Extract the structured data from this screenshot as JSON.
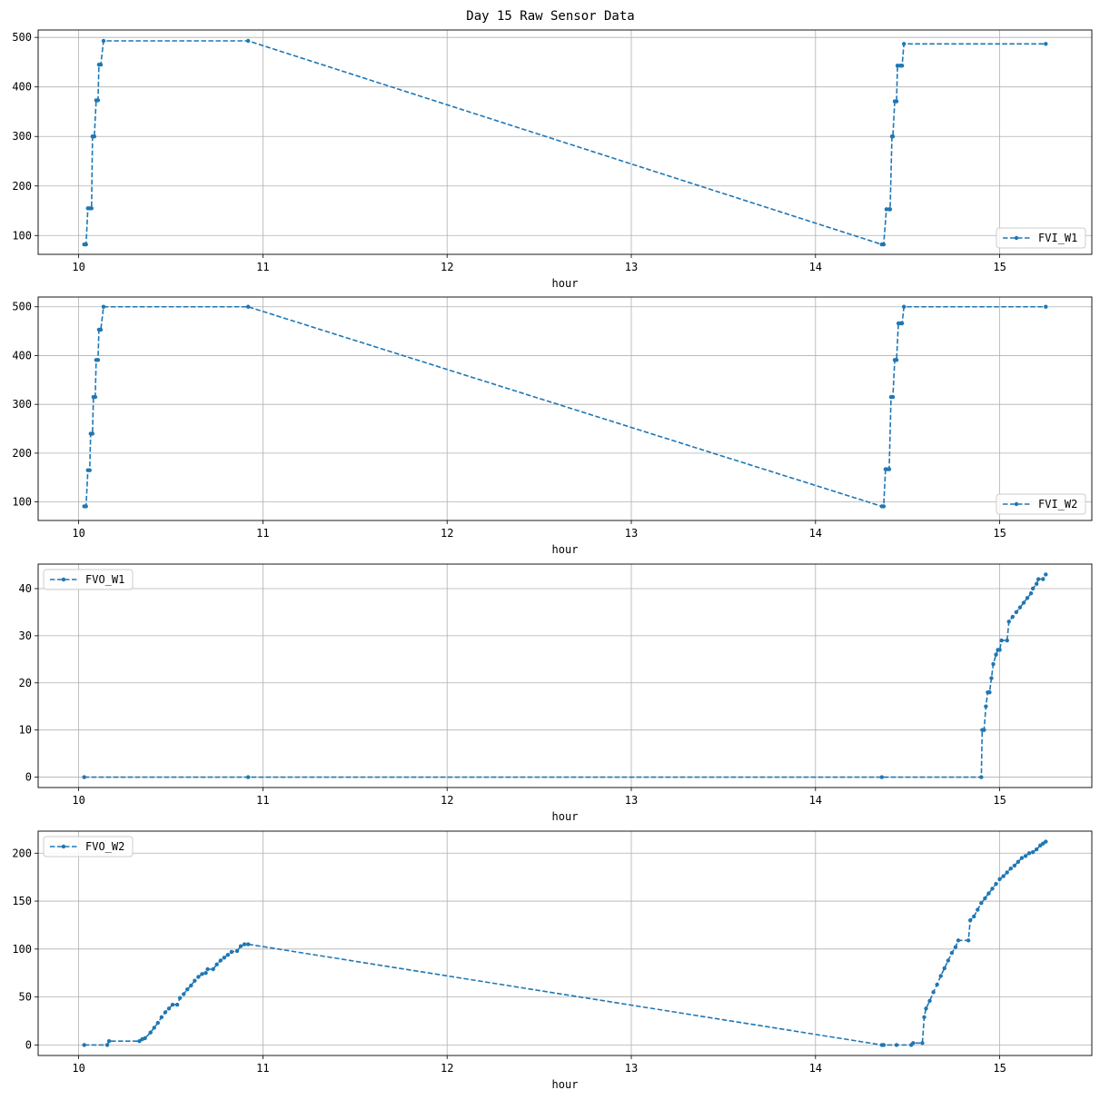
{
  "figure": {
    "title": "Day 15 Raw Sensor Data"
  },
  "style": {
    "line_color": "#1f77b4",
    "grid_color": "#b0b0b0"
  },
  "chart_data": [
    {
      "type": "line",
      "series": [
        {
          "name": "FVI_W1",
          "x": [
            10.04,
            10.07,
            10.085,
            10.1,
            10.12,
            10.13,
            10.92,
            14.37,
            14.4,
            14.42,
            14.44,
            14.47,
            14.48,
            15.25
          ],
          "y": [
            82,
            155,
            300,
            373,
            445,
            493,
            493,
            82,
            153,
            300,
            371,
            443,
            487,
            487
          ]
        }
      ],
      "xlabel": "hour",
      "ylabel": "",
      "xlim": [
        9.78,
        15.5
      ],
      "ylim": [
        62,
        515
      ],
      "xticks": [
        10,
        11,
        12,
        13,
        14,
        15
      ],
      "yticks": [
        100,
        200,
        300,
        400,
        500
      ],
      "grid": true,
      "legend": "lower right",
      "points": [
        [
          10.03,
          82
        ],
        [
          10.04,
          82
        ],
        [
          10.05,
          155
        ],
        [
          10.06,
          155
        ],
        [
          10.07,
          155
        ],
        [
          10.075,
          300
        ],
        [
          10.085,
          300
        ],
        [
          10.095,
          373
        ],
        [
          10.105,
          373
        ],
        [
          10.11,
          445
        ],
        [
          10.12,
          445
        ],
        [
          10.135,
          493
        ],
        [
          10.92,
          493
        ],
        [
          14.36,
          82
        ],
        [
          14.37,
          82
        ],
        [
          14.385,
          153
        ],
        [
          14.4,
          153
        ],
        [
          14.405,
          153
        ],
        [
          14.415,
          300
        ],
        [
          14.42,
          300
        ],
        [
          14.43,
          371
        ],
        [
          14.44,
          371
        ],
        [
          14.445,
          443
        ],
        [
          14.46,
          443
        ],
        [
          14.47,
          443
        ],
        [
          14.48,
          487
        ],
        [
          15.25,
          487
        ]
      ]
    },
    {
      "type": "line",
      "series": [
        {
          "name": "FVI_W2",
          "x": [
            10.04,
            10.06,
            10.07,
            10.085,
            10.1,
            10.12,
            10.14,
            10.92,
            14.37,
            14.4,
            14.42,
            14.44,
            14.47,
            14.48,
            15.25
          ],
          "y": [
            91,
            165,
            240,
            315,
            391,
            453,
            500,
            500,
            91,
            167,
            315,
            391,
            466,
            500,
            500
          ]
        }
      ],
      "xlabel": "hour",
      "ylabel": "",
      "xlim": [
        9.78,
        15.5
      ],
      "ylim": [
        62,
        520
      ],
      "xticks": [
        10,
        11,
        12,
        13,
        14,
        15
      ],
      "yticks": [
        100,
        200,
        300,
        400,
        500
      ],
      "grid": true,
      "legend": "lower right",
      "points": [
        [
          10.03,
          91
        ],
        [
          10.04,
          91
        ],
        [
          10.05,
          165
        ],
        [
          10.06,
          165
        ],
        [
          10.065,
          240
        ],
        [
          10.075,
          240
        ],
        [
          10.08,
          315
        ],
        [
          10.09,
          315
        ],
        [
          10.095,
          391
        ],
        [
          10.105,
          391
        ],
        [
          10.11,
          453
        ],
        [
          10.12,
          453
        ],
        [
          10.135,
          500
        ],
        [
          10.92,
          500
        ],
        [
          14.36,
          91
        ],
        [
          14.37,
          91
        ],
        [
          14.38,
          167
        ],
        [
          14.39,
          167
        ],
        [
          14.4,
          167
        ],
        [
          14.41,
          315
        ],
        [
          14.42,
          315
        ],
        [
          14.43,
          391
        ],
        [
          14.44,
          391
        ],
        [
          14.45,
          466
        ],
        [
          14.46,
          466
        ],
        [
          14.47,
          466
        ],
        [
          14.48,
          500
        ],
        [
          15.25,
          500
        ]
      ]
    },
    {
      "type": "line",
      "series": [
        {
          "name": "FVO_W1",
          "x": [
            10.04,
            10.92,
            14.37,
            14.9,
            14.91,
            14.93,
            14.95,
            15.0,
            15.05,
            15.25
          ],
          "y": [
            0,
            0,
            0,
            0,
            10,
            18,
            24,
            29,
            33,
            43
          ]
        }
      ],
      "xlabel": "hour",
      "ylabel": "",
      "xlim": [
        9.78,
        15.5
      ],
      "ylim": [
        -2.2,
        45.2
      ],
      "xticks": [
        10,
        11,
        12,
        13,
        14,
        15
      ],
      "yticks": [
        0,
        10,
        20,
        30,
        40
      ],
      "grid": true,
      "legend": "upper left",
      "points": [
        [
          10.03,
          0
        ],
        [
          10.92,
          0
        ],
        [
          14.36,
          0
        ],
        [
          14.9,
          0
        ],
        [
          14.905,
          10
        ],
        [
          14.915,
          10
        ],
        [
          14.925,
          15
        ],
        [
          14.935,
          18
        ],
        [
          14.945,
          18
        ],
        [
          14.955,
          21
        ],
        [
          14.965,
          24
        ],
        [
          14.98,
          26
        ],
        [
          14.99,
          27
        ],
        [
          15.0,
          27
        ],
        [
          15.01,
          29
        ],
        [
          15.04,
          29
        ],
        [
          15.05,
          33
        ],
        [
          15.07,
          34
        ],
        [
          15.09,
          35
        ],
        [
          15.11,
          36
        ],
        [
          15.13,
          37
        ],
        [
          15.15,
          38
        ],
        [
          15.17,
          39
        ],
        [
          15.18,
          40
        ],
        [
          15.2,
          41
        ],
        [
          15.21,
          42
        ],
        [
          15.235,
          42
        ],
        [
          15.25,
          43
        ]
      ]
    },
    {
      "type": "line",
      "series": [
        {
          "name": "FVO_W2",
          "x": [
            10.04,
            10.16,
            10.35,
            10.6,
            10.92,
            14.37,
            14.55,
            14.6,
            14.8,
            14.85,
            15.0,
            15.25
          ],
          "y": [
            0,
            4,
            5,
            55,
            105,
            0,
            2,
            30,
            109,
            130,
            175,
            212
          ]
        }
      ],
      "xlabel": "hour",
      "ylabel": "",
      "xlim": [
        9.78,
        15.5
      ],
      "ylim": [
        -11,
        223
      ],
      "xticks": [
        10,
        11,
        12,
        13,
        14,
        15
      ],
      "yticks": [
        0,
        50,
        100,
        150,
        200
      ],
      "grid": true,
      "legend": "upper left",
      "points": [
        [
          10.03,
          0
        ],
        [
          10.155,
          0
        ],
        [
          10.165,
          4
        ],
        [
          10.33,
          4
        ],
        [
          10.345,
          6
        ],
        [
          10.36,
          7
        ],
        [
          10.39,
          13
        ],
        [
          10.41,
          18
        ],
        [
          10.43,
          23
        ],
        [
          10.45,
          29
        ],
        [
          10.47,
          34
        ],
        [
          10.49,
          38
        ],
        [
          10.51,
          42
        ],
        [
          10.535,
          42
        ],
        [
          10.55,
          49
        ],
        [
          10.57,
          53
        ],
        [
          10.59,
          58
        ],
        [
          10.61,
          62
        ],
        [
          10.63,
          67
        ],
        [
          10.65,
          71
        ],
        [
          10.67,
          74
        ],
        [
          10.69,
          75
        ],
        [
          10.7,
          79
        ],
        [
          10.73,
          79
        ],
        [
          10.75,
          84
        ],
        [
          10.77,
          88
        ],
        [
          10.79,
          91
        ],
        [
          10.81,
          94
        ],
        [
          10.83,
          97
        ],
        [
          10.86,
          98
        ],
        [
          10.88,
          103
        ],
        [
          10.9,
          105
        ],
        [
          10.92,
          105
        ],
        [
          14.36,
          0
        ],
        [
          14.37,
          0
        ],
        [
          14.44,
          0
        ],
        [
          14.52,
          0
        ],
        [
          14.53,
          2
        ],
        [
          14.58,
          2
        ],
        [
          14.59,
          29
        ],
        [
          14.6,
          38
        ],
        [
          14.62,
          46
        ],
        [
          14.64,
          55
        ],
        [
          14.66,
          63
        ],
        [
          14.68,
          72
        ],
        [
          14.7,
          80
        ],
        [
          14.72,
          88
        ],
        [
          14.74,
          96
        ],
        [
          14.76,
          102
        ],
        [
          14.775,
          109
        ],
        [
          14.83,
          109
        ],
        [
          14.84,
          130
        ],
        [
          14.86,
          134
        ],
        [
          14.88,
          141
        ],
        [
          14.9,
          148
        ],
        [
          14.92,
          153
        ],
        [
          14.94,
          158
        ],
        [
          14.96,
          163
        ],
        [
          14.98,
          168
        ],
        [
          15.0,
          173
        ],
        [
          15.02,
          176
        ],
        [
          15.04,
          180
        ],
        [
          15.06,
          184
        ],
        [
          15.08,
          187
        ],
        [
          15.1,
          191
        ],
        [
          15.12,
          195
        ],
        [
          15.14,
          197
        ],
        [
          15.16,
          200
        ],
        [
          15.18,
          201
        ],
        [
          15.2,
          204
        ],
        [
          15.22,
          208
        ],
        [
          15.235,
          210
        ],
        [
          15.25,
          212
        ]
      ]
    }
  ]
}
